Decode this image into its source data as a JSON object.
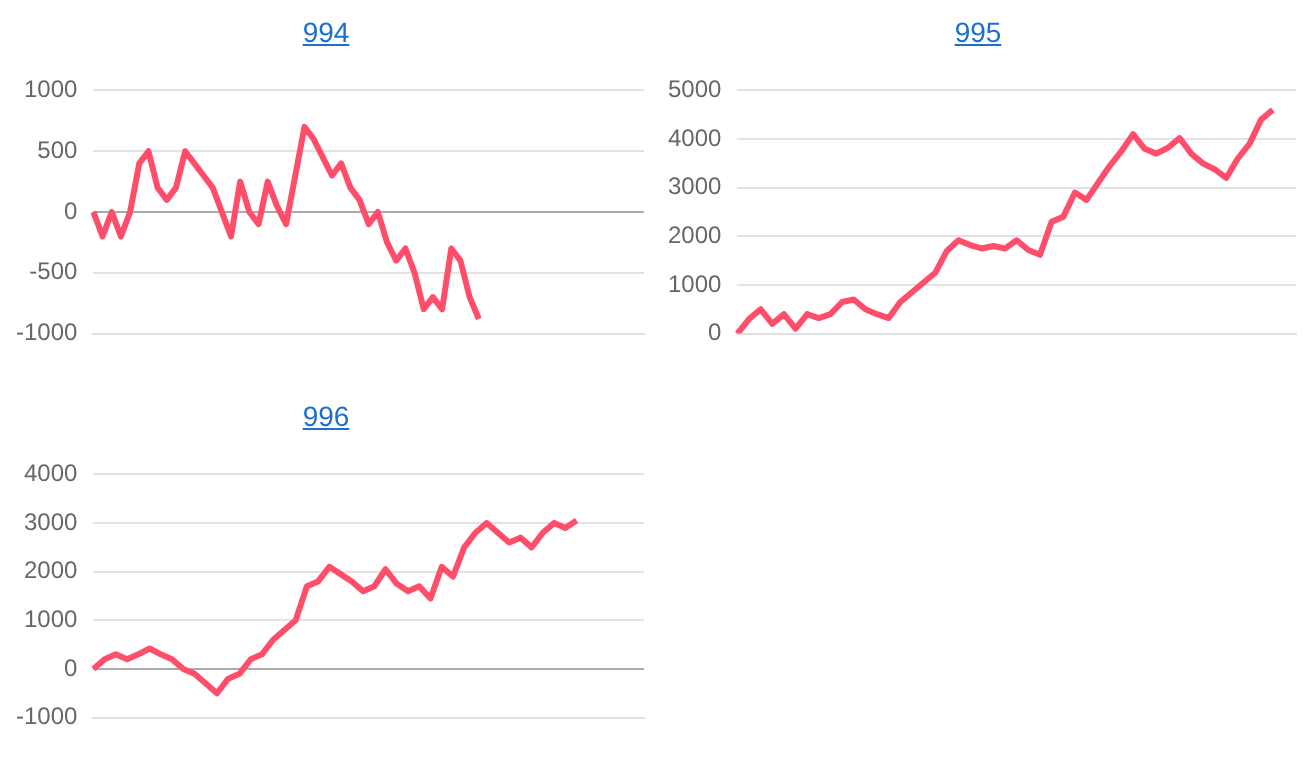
{
  "chart_data": [
    {
      "type": "line",
      "title": "994",
      "categories": [
        null,
        null,
        null,
        null,
        null,
        null,
        null,
        null,
        null,
        null,
        null,
        null,
        null,
        null,
        null,
        null,
        null,
        null,
        null,
        null,
        null,
        null,
        null,
        null,
        null,
        null,
        null,
        null,
        null,
        null,
        null,
        null,
        null,
        null,
        null,
        null,
        null,
        null,
        null,
        null,
        null,
        null,
        null,
        null,
        null,
        null,
        null,
        null,
        null,
        null,
        null,
        null,
        null,
        null,
        null,
        null,
        null,
        null,
        null,
        null,
        null
      ],
      "series": [
        {
          "color": "#ff4d6a",
          "values": [
            0,
            -200,
            0,
            -200,
            0,
            400,
            500,
            200,
            100,
            200,
            500,
            400,
            300,
            200,
            0,
            -200,
            250,
            0,
            -100,
            250,
            50,
            -100,
            300,
            700,
            600,
            450,
            300,
            400,
            200,
            100,
            -100,
            0,
            -250,
            -400,
            -300,
            -500,
            -800,
            -700,
            -800,
            -300,
            -400,
            -700,
            -880,
            null,
            null,
            null,
            null,
            null,
            null,
            null,
            null,
            null,
            null,
            null,
            null,
            null,
            null,
            null,
            null,
            null,
            null
          ]
        }
      ],
      "ylim": [
        -1000,
        1000
      ],
      "yticks": [
        -1000,
        -500,
        0,
        500,
        1000
      ],
      "grid": "y",
      "tick_labels": "y",
      "legend": false,
      "marker": "none",
      "line_style": "solid"
    },
    {
      "type": "line",
      "title": "995",
      "categories": [
        null,
        null,
        null,
        null,
        null,
        null,
        null,
        null,
        null,
        null,
        null,
        null,
        null,
        null,
        null,
        null,
        null,
        null,
        null,
        null,
        null,
        null,
        null,
        null,
        null,
        null,
        null,
        null,
        null,
        null,
        null,
        null,
        null,
        null,
        null,
        null,
        null,
        null,
        null,
        null,
        null,
        null,
        null,
        null,
        null,
        null,
        null,
        null,
        null
      ],
      "series": [
        {
          "color": "#ff4d6a",
          "values": [
            0,
            300,
            500,
            200,
            400,
            100,
            400,
            320,
            400,
            650,
            700,
            500,
            400,
            320,
            650,
            850,
            1050,
            1250,
            1700,
            1920,
            1820,
            1750,
            1800,
            1750,
            1920,
            1720,
            1620,
            2300,
            2400,
            2900,
            2750,
            3100,
            3450,
            3750,
            4100,
            3800,
            3700,
            3820,
            4020,
            3700,
            3500,
            3380,
            3200,
            3600,
            3900,
            4400,
            4600,
            null,
            null
          ]
        }
      ],
      "ylim": [
        0,
        5000
      ],
      "yticks": [
        0,
        1000,
        2000,
        3000,
        4000,
        5000
      ],
      "grid": "y",
      "tick_labels": "y",
      "legend": false,
      "marker": "none",
      "line_style": "solid"
    },
    {
      "type": "line",
      "title": "996",
      "categories": [
        null,
        null,
        null,
        null,
        null,
        null,
        null,
        null,
        null,
        null,
        null,
        null,
        null,
        null,
        null,
        null,
        null,
        null,
        null,
        null,
        null,
        null,
        null,
        null,
        null,
        null,
        null,
        null,
        null,
        null,
        null,
        null,
        null,
        null,
        null,
        null,
        null,
        null,
        null,
        null,
        null,
        null,
        null,
        null,
        null,
        null,
        null,
        null,
        null,
        null
      ],
      "series": [
        {
          "color": "#ff4d6a",
          "values": [
            0,
            200,
            300,
            200,
            300,
            420,
            300,
            200,
            0,
            -100,
            -300,
            -500,
            -200,
            -100,
            200,
            300,
            600,
            800,
            1000,
            1700,
            1800,
            2100,
            1950,
            1800,
            1600,
            1700,
            2050,
            1750,
            1600,
            1700,
            1450,
            2100,
            1900,
            2500,
            2800,
            3000,
            2800,
            2600,
            2700,
            2500,
            2800,
            3000,
            2900,
            3050,
            null,
            null,
            null,
            null,
            null,
            null
          ]
        }
      ],
      "ylim": [
        -1000,
        4000
      ],
      "yticks": [
        -1000,
        0,
        1000,
        2000,
        3000,
        4000
      ],
      "grid": "y",
      "tick_labels": "y",
      "legend": false,
      "marker": "none",
      "line_style": "solid"
    }
  ]
}
